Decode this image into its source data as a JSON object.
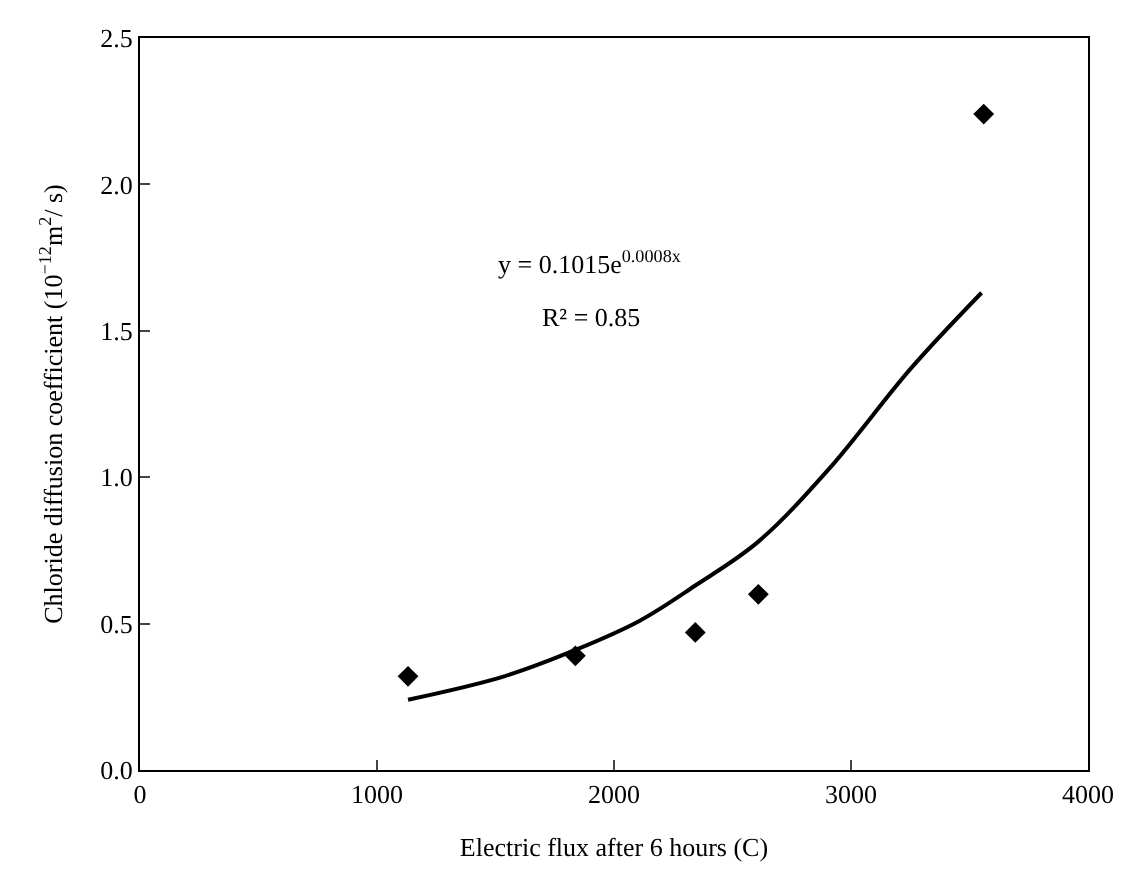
{
  "chart_data": {
    "type": "scatter",
    "xlabel": "Electric flux after 6 hours (C)",
    "ylabel": "Chloride diffusion coefficient (10$^{−12}$m$^{2}$/ s)",
    "xlim": [
      0,
      4000
    ],
    "xticks": [
      0,
      1000,
      2000,
      3000,
      4000
    ],
    "ylim": [
      0,
      2.5
    ],
    "yticks": [
      {
        "value": 0,
        "label": "0.0"
      },
      {
        "value": 0.5,
        "label": "0.5"
      },
      {
        "value": 1,
        "label": "1.0"
      },
      {
        "value": 1.5,
        "label": "1.5"
      },
      {
        "value": 2,
        "label": "2.0"
      },
      {
        "value": 2.5,
        "label": "2.5"
      }
    ],
    "legend": false,
    "annotations": [
      "y = 0.1015e$^{0.0008x}$",
      "R² = 0.85"
    ],
    "series": [
      {
        "color": "#000000",
        "marker": "diamond",
        "x": [
          1131,
          1837,
          2343,
          2609,
          3560
        ],
        "values": [
          0.32,
          0.39,
          0.47,
          0.6,
          2.24
        ]
      },
      {
        "type": "line",
        "color": "#000000",
        "marker": "none",
        "line_style": "solid",
        "x": [
          1131,
          1537,
          1837,
          2109,
          2343,
          2609,
          2909,
          3251,
          3551
        ],
        "values": [
          0.24,
          0.32,
          0.41,
          0.51,
          0.63,
          0.78,
          1.03,
          1.37,
          1.63
        ]
      }
    ]
  }
}
